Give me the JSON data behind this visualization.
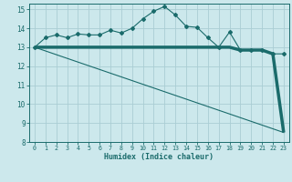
{
  "xlabel": "Humidex (Indice chaleur)",
  "bg_color": "#cce8ec",
  "grid_color": "#aacdd4",
  "line_color": "#1a6b6b",
  "xlim": [
    -0.5,
    23.5
  ],
  "ylim": [
    8,
    15.3
  ],
  "yticks": [
    8,
    9,
    10,
    11,
    12,
    13,
    14,
    15
  ],
  "xticks": [
    0,
    1,
    2,
    3,
    4,
    5,
    6,
    7,
    8,
    9,
    10,
    11,
    12,
    13,
    14,
    15,
    16,
    17,
    18,
    19,
    20,
    21,
    22,
    23
  ],
  "line1_x": [
    0,
    1,
    2,
    3,
    4,
    5,
    6,
    7,
    8,
    9,
    10,
    11,
    12,
    13,
    14,
    15,
    16,
    17,
    18,
    19,
    20,
    21,
    22,
    23
  ],
  "line1_y": [
    13.0,
    13.5,
    13.65,
    13.5,
    13.7,
    13.65,
    13.65,
    13.9,
    13.75,
    14.0,
    14.5,
    14.9,
    15.15,
    14.7,
    14.1,
    14.05,
    13.5,
    13.0,
    13.8,
    12.85,
    12.85,
    12.85,
    12.65,
    12.65
  ],
  "line2_x": [
    0,
    3,
    10,
    12,
    18,
    19,
    20,
    21,
    22,
    23
  ],
  "line2_y": [
    13.0,
    13.0,
    13.0,
    13.0,
    13.0,
    12.85,
    12.85,
    12.85,
    12.65,
    8.5
  ],
  "line3_x": [
    0,
    23
  ],
  "line3_y": [
    13.0,
    8.5
  ]
}
